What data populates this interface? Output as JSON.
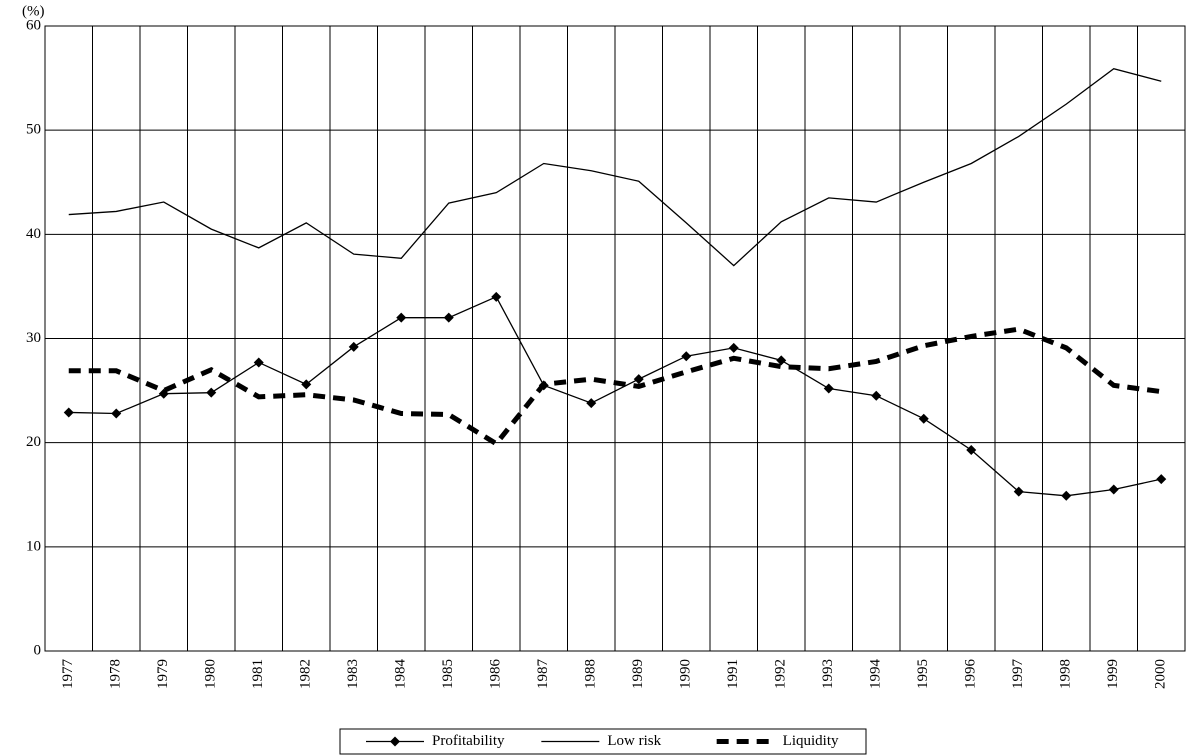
{
  "chart_data": {
    "type": "line",
    "y_label": "(%)",
    "categories": [
      "1977",
      "1978",
      "1979",
      "1980",
      "1981",
      "1982",
      "1983",
      "1984",
      "1985",
      "1986",
      "1987",
      "1988",
      "1989",
      "1990",
      "1991",
      "1992",
      "1993",
      "1994",
      "1995",
      "1996",
      "1997",
      "1998",
      "1999",
      "2000"
    ],
    "series": [
      {
        "name": "Profitability",
        "color": "#000000",
        "marker": "diamond",
        "style": "solid",
        "values": [
          22.9,
          22.8,
          24.7,
          24.8,
          27.7,
          25.6,
          29.2,
          32.0,
          32.0,
          34.0,
          25.5,
          23.8,
          26.1,
          28.3,
          29.1,
          27.9,
          25.2,
          24.5,
          22.3,
          19.3,
          15.3,
          14.9,
          15.5,
          16.5
        ]
      },
      {
        "name": "Low risk",
        "color": "#000000",
        "style": "solid",
        "values": [
          41.9,
          42.2,
          43.1,
          40.5,
          38.7,
          41.1,
          38.1,
          37.7,
          43.0,
          44.0,
          46.8,
          46.1,
          45.1,
          41.1,
          37.0,
          41.2,
          43.5,
          43.1,
          45.0,
          46.8,
          49.4,
          52.5,
          55.9,
          54.7
        ]
      },
      {
        "name": "Liquidity",
        "color": "#000000",
        "style": "dashed",
        "values": [
          26.9,
          26.9,
          25.0,
          27.0,
          24.4,
          24.6,
          24.1,
          22.8,
          22.7,
          19.9,
          25.6,
          26.1,
          25.4,
          26.8,
          28.1,
          27.3,
          27.1,
          27.8,
          29.3,
          30.2,
          30.9,
          29.1,
          25.5,
          24.9
        ]
      }
    ],
    "ylim": [
      0,
      60
    ],
    "yticks": [
      0,
      10,
      20,
      30,
      40,
      50,
      60
    ],
    "grid": true,
    "legend": "bottom"
  }
}
